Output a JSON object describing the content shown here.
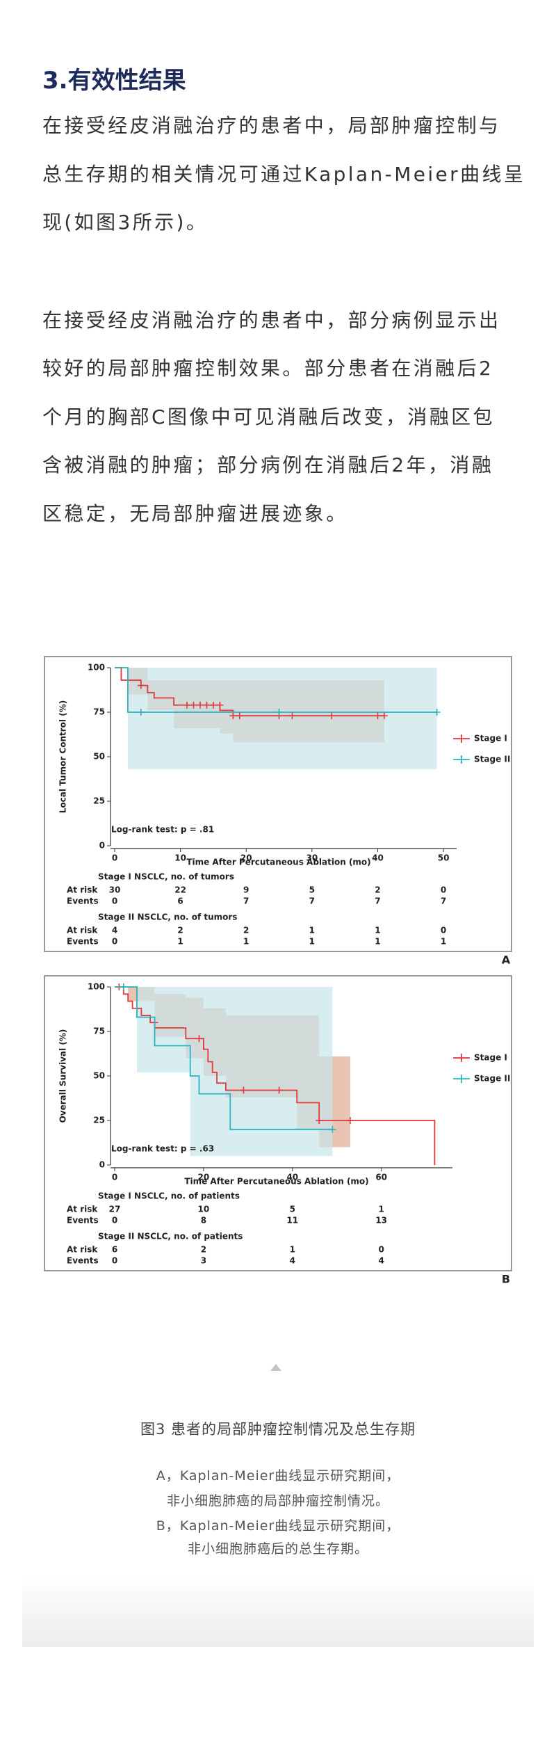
{
  "heading": "3.有效性结果",
  "paragraphs": [
    [
      "在接受经皮消融治疗的患者中，局部肿瘤控制与",
      "总生存期的相关情况可通过Kaplan-Meier曲线呈",
      "现(如图3所示)。"
    ],
    [
      "在接受经皮消融治疗的患者中，部分病例显示出",
      "较好的局部肿瘤控制效果。部分患者在消融后2",
      "个月的胸部C图像中可见消融后改变，消融区包",
      "含被消融的肿瘤；部分病例在消融后2年，消融",
      "区稳定，无局部肿瘤进展迹象。"
    ]
  ],
  "chart_data": [
    {
      "type": "step",
      "panel": "A",
      "y_label": "Local Tumor Control (%)",
      "x_label": "Time After Percutaneous Ablation (mo)",
      "annotation": "Log-rank test: p = .81",
      "xlim": [
        0,
        52
      ],
      "xticks": [
        0,
        10,
        20,
        30,
        40,
        50
      ],
      "ylim": [
        0,
        100
      ],
      "yticks": [
        0,
        25,
        50,
        75,
        100
      ],
      "legend": "right",
      "series": [
        {
          "name": "Stage I",
          "color": "#e0383b",
          "band_color": "#e2b09a",
          "x": [
            0,
            1,
            4,
            5,
            6,
            9,
            16,
            18,
            41
          ],
          "values": [
            100,
            93,
            90,
            86,
            83,
            79,
            76,
            73,
            73
          ],
          "censored_x": [
            4,
            11,
            12,
            13,
            14,
            15,
            16,
            18,
            19,
            25,
            27,
            33,
            40,
            41
          ],
          "censored_values": [
            90,
            79,
            79,
            79,
            79,
            79,
            79,
            73,
            73,
            73,
            73,
            73,
            73,
            73
          ],
          "ci_x": [
            0,
            2,
            5,
            9,
            16,
            18,
            41
          ],
          "ci_lower": [
            100,
            85,
            76,
            66,
            63,
            58,
            58
          ],
          "ci_upper": [
            100,
            100,
            93,
            93,
            93,
            93,
            93
          ]
        },
        {
          "name": "Stage II",
          "color": "#29b2c0",
          "band_color": "#c7e6ea",
          "x": [
            0,
            2,
            49
          ],
          "values": [
            100,
            75,
            75
          ],
          "censored_x": [
            4,
            25,
            49
          ],
          "censored_values": [
            75,
            75,
            75
          ],
          "ci_x": [
            2,
            49
          ],
          "ci_lower": [
            43,
            43
          ],
          "ci_upper": [
            100,
            100
          ]
        }
      ],
      "risk_table": [
        {
          "title": "Stage I NSCLC, no. of tumors",
          "rows": [
            {
              "label": "At risk",
              "values": [
                30,
                22,
                9,
                5,
                2,
                0
              ]
            },
            {
              "label": "Events",
              "values": [
                0,
                6,
                7,
                7,
                7,
                7
              ]
            }
          ]
        },
        {
          "title": "Stage II NSCLC, no. of tumors",
          "rows": [
            {
              "label": "At risk",
              "values": [
                4,
                2,
                2,
                1,
                1,
                0
              ]
            },
            {
              "label": "Events",
              "values": [
                0,
                1,
                1,
                1,
                1,
                1
              ]
            }
          ]
        }
      ]
    },
    {
      "type": "step",
      "panel": "B",
      "y_label": "Overall Survival (%)",
      "x_label": "Time After Percutaneous Ablation (mo)",
      "annotation": "Log-rank test: p = .63",
      "xlim": [
        0,
        76
      ],
      "xticks": [
        0,
        20,
        40,
        60
      ],
      "ylim": [
        0,
        100
      ],
      "yticks": [
        0,
        25,
        50,
        75,
        100
      ],
      "legend": "right",
      "series": [
        {
          "name": "Stage I",
          "color": "#e0383b",
          "band_color": "#e2b09a",
          "x": [
            0,
            2,
            3,
            4,
            6,
            8,
            9,
            16,
            20,
            21,
            22,
            23,
            25,
            41,
            46,
            72,
            72
          ],
          "values": [
            100,
            96,
            92,
            88,
            84,
            80,
            77,
            71,
            65,
            58,
            52,
            46,
            42,
            35,
            25,
            25,
            0
          ],
          "censored_x": [
            1,
            9,
            19,
            29,
            37,
            46,
            53
          ],
          "censored_values": [
            100,
            80,
            71,
            42,
            42,
            25,
            25
          ],
          "ci_x": [
            0,
            3,
            9,
            16,
            20,
            25,
            41,
            46,
            53
          ],
          "ci_lower": [
            100,
            92,
            72,
            60,
            50,
            38,
            20,
            10,
            10
          ],
          "ci_upper": [
            100,
            100,
            96,
            94,
            88,
            84,
            84,
            61,
            61
          ]
        },
        {
          "name": "Stage II",
          "color": "#29b2c0",
          "band_color": "#c7e6ea",
          "x": [
            0,
            5,
            9,
            17,
            19,
            26,
            49
          ],
          "values": [
            100,
            83,
            67,
            50,
            40,
            20,
            20
          ],
          "censored_x": [
            2,
            49
          ],
          "censored_values": [
            100,
            20
          ],
          "ci_x": [
            5,
            17,
            49
          ],
          "ci_lower": [
            52,
            5,
            5
          ],
          "ci_upper": [
            100,
            100,
            100
          ]
        }
      ],
      "risk_table": [
        {
          "title": "Stage I NSCLC, no. of patients",
          "rows": [
            {
              "label": "At risk",
              "values": [
                27,
                10,
                5,
                1
              ]
            },
            {
              "label": "Events",
              "values": [
                0,
                8,
                11,
                13
              ]
            }
          ]
        },
        {
          "title": "Stage II NSCLC, no. of patients",
          "rows": [
            {
              "label": "At risk",
              "values": [
                6,
                2,
                1,
                0
              ]
            },
            {
              "label": "Events",
              "values": [
                0,
                3,
                4,
                4
              ]
            }
          ]
        }
      ]
    }
  ],
  "caption": {
    "title": "图3  患者的局部肿瘤控制情况及总生存期",
    "lines": [
      "A，Kaplan-Meier曲线显示研究期间，",
      "非小细胞肺癌的局部肿瘤控制情况。",
      "B，Kaplan-Meier曲线显示研究期间，",
      "非小细胞肺癌后的总生存期。"
    ]
  }
}
